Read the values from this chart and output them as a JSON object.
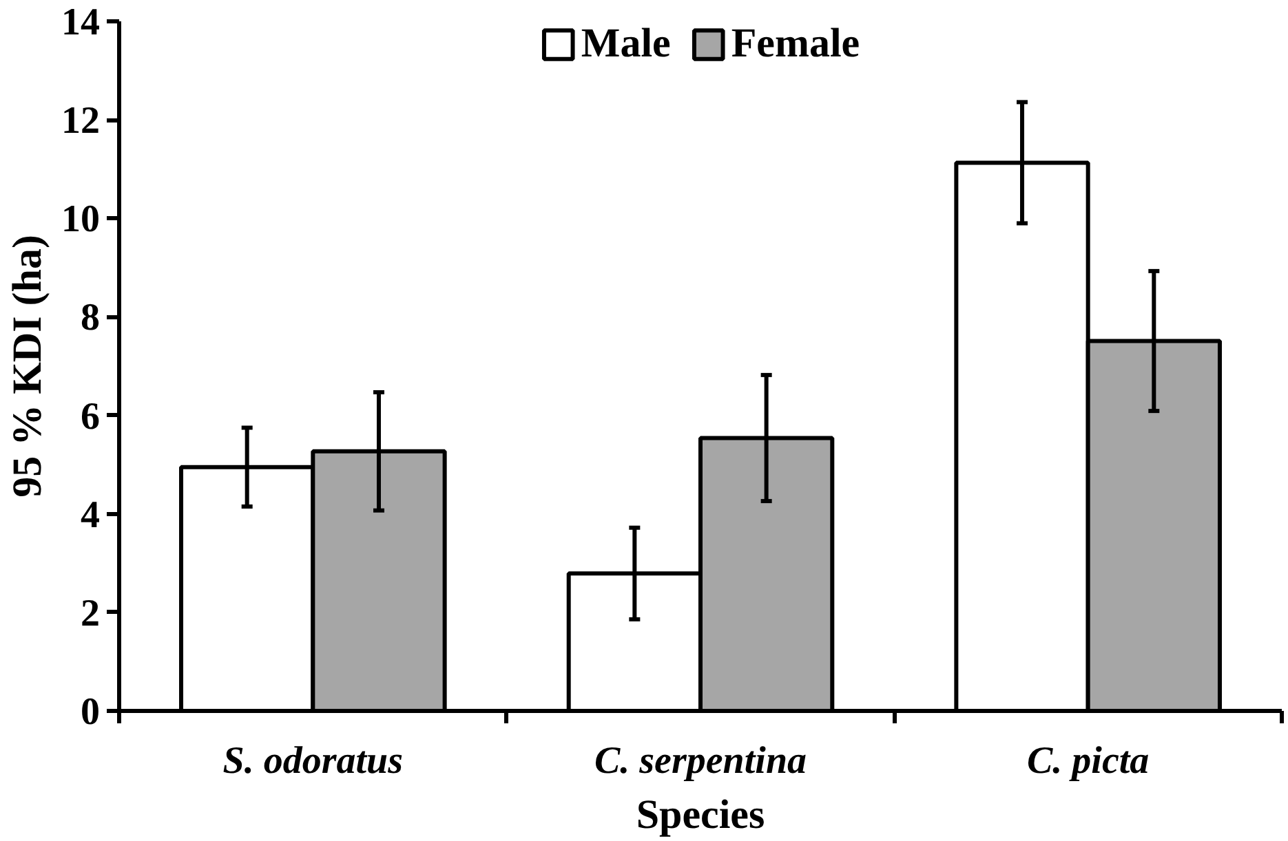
{
  "chart_data": {
    "type": "bar",
    "xlabel": "Species",
    "ylabel": "95 % KDI (ha)",
    "categories": [
      "S. odoratus",
      "C. serpentina",
      "C. picta"
    ],
    "series": [
      {
        "name": "Male",
        "color": "#ffffff",
        "values": [
          4.95,
          2.79,
          11.13
        ],
        "errors": [
          0.8,
          0.93,
          1.23
        ]
      },
      {
        "name": "Female",
        "color": "#a6a6a6",
        "values": [
          5.27,
          5.54,
          7.51
        ],
        "errors": [
          1.2,
          1.28,
          1.42
        ]
      }
    ],
    "ylim": [
      0,
      14
    ],
    "yticks": [
      0,
      2,
      4,
      6,
      8,
      10,
      12,
      14
    ],
    "grid": false,
    "legend": "top"
  }
}
